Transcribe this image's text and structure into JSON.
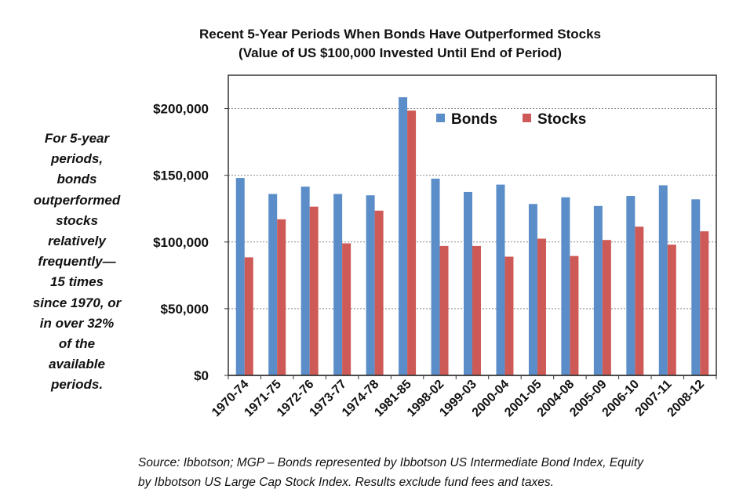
{
  "title": {
    "line1": "Recent 5-Year Periods When Bonds Have Outperformed Stocks",
    "line2": "(Value of US $100,000 Invested Until End of Period)"
  },
  "side_note": {
    "lines": [
      "For 5-year",
      "periods,",
      "bonds",
      "outperformed",
      "stocks",
      "relatively",
      "frequently—",
      "15 times",
      "since 1970, or",
      "in over 32%",
      "of the",
      "available",
      "periods."
    ]
  },
  "source": {
    "line1": "Source: Ibbotson; MGP – Bonds represented by Ibbotson US Intermediate Bond Index, Equity",
    "line2": "by Ibbotson US Large Cap Stock Index. Results exclude fund fees and taxes."
  },
  "colors": {
    "bonds": "#5b8ec8",
    "stocks": "#cd5a56",
    "grid": "#8a8a8a",
    "frame": "#333333"
  },
  "chart_data": {
    "type": "bar",
    "title": "Recent 5-Year Periods When Bonds Have Outperformed Stocks (Value of US $100,000 Invested Until End of Period)",
    "xlabel": "",
    "ylabel": "",
    "categories": [
      "1970-74",
      "1971-75",
      "1972-76",
      "1973-77",
      "1974-78",
      "1981-85",
      "1998-02",
      "1999-03",
      "2000-04",
      "2001-05",
      "2004-08",
      "2005-09",
      "2006-10",
      "2007-11",
      "2008-12"
    ],
    "series": [
      {
        "name": "Bonds",
        "values": [
          148000,
          136000,
          141500,
          136000,
          135000,
          208500,
          147500,
          137500,
          143000,
          128500,
          133500,
          127000,
          134500,
          142500,
          132000
        ]
      },
      {
        "name": "Stocks",
        "values": [
          88500,
          117000,
          126500,
          99000,
          123500,
          198500,
          97000,
          97000,
          89000,
          102500,
          89500,
          101500,
          111500,
          98000,
          108000
        ]
      }
    ],
    "ylim": [
      0,
      225000
    ],
    "yticks": [
      0,
      50000,
      100000,
      150000,
      200000
    ],
    "ytick_labels": [
      "$0",
      "$50,000",
      "$100,000",
      "$150,000",
      "$200,000"
    ],
    "grid": true,
    "legend_position": "top-right, inside plot"
  }
}
